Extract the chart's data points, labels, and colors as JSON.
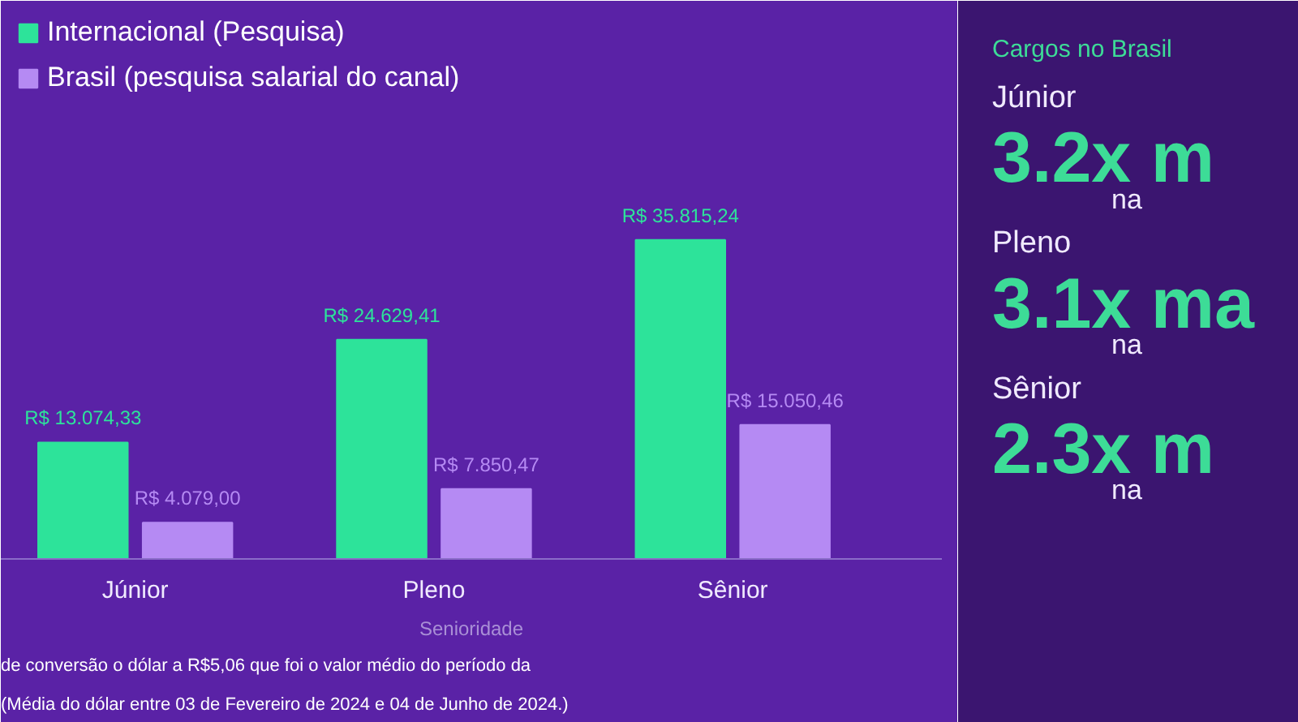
{
  "chart_data": [
    {
      "type": "bar",
      "categories": [
        "Júnior",
        "Pleno",
        "Sênior"
      ],
      "xlabel": "Senioridade",
      "legend": "top left",
      "series": [
        {
          "name": "Internacional (Pesquisa)",
          "color": "#2de39a",
          "values": [
            13074.33,
            24629.41,
            35815.24
          ],
          "value_labels": [
            "R$ 13.074,33",
            "R$ 24.629,41",
            "R$ 35.815,24"
          ]
        },
        {
          "name": "Brasil (pesquisa salarial do canal)",
          "color": "#b58af3",
          "values": [
            4079.0,
            7850.47,
            15050.46
          ],
          "value_labels": [
            "R$ 4.079,00",
            "R$ 7.850,47",
            "R$ 15.050,46"
          ]
        }
      ],
      "annotations": [
        "de conversão o dólar a R$5,06 que foi o valor médio do período da",
        "(Média do dólar entre 03 de Fevereiro de 2024 e 04 de Junho de 2024.)"
      ]
    },
    {
      "type": "other",
      "title": "Cargos no Brasil",
      "annotations": [
        "Júnior",
        "3.2x m",
        "na",
        "Pleno",
        "3.1x ma",
        "na",
        "Sênior",
        "2.3x m",
        "na"
      ]
    }
  ]
}
